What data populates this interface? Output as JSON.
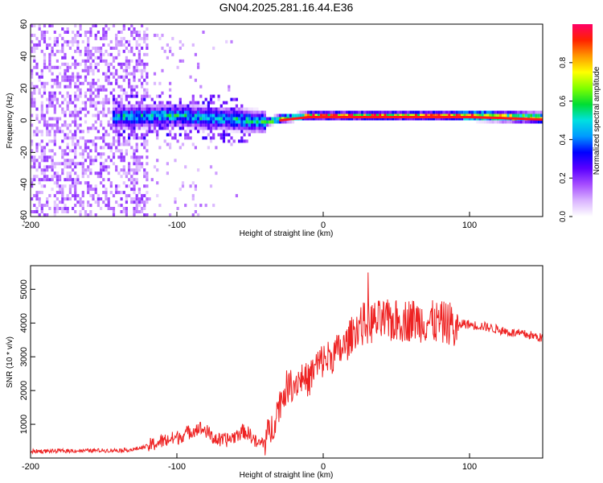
{
  "chart_data": [
    {
      "type": "heatmap",
      "title": "GN04.2025.281.16.44.E36",
      "xlabel": "Height of straight line (km)",
      "ylabel": "Frequency (Hz)",
      "xlim": [
        -200,
        150
      ],
      "ylim": [
        -60,
        60
      ],
      "xticks": [
        -200,
        -100,
        0,
        100
      ],
      "yticks": [
        -60,
        -40,
        -20,
        0,
        20,
        40,
        60
      ],
      "colorbar": {
        "label": "Normalized spectral amplitude",
        "range": [
          0,
          1
        ],
        "ticks": [
          "0.0",
          "0.2",
          "0.4",
          "0.6",
          "0.8"
        ],
        "colors": [
          "#ffffff",
          "#d9b3ff",
          "#a64dff",
          "#5a00ff",
          "#0000ff",
          "#0099ff",
          "#00e0e0",
          "#00dd33",
          "#80ff00",
          "#ffff00",
          "#ff9900",
          "#ff2200",
          "#ff0066"
        ]
      },
      "ridge": {
        "x": [
          -140,
          -120,
          -100,
          -80,
          -60,
          -50,
          -40,
          -30,
          -20,
          -10,
          0,
          20,
          40,
          60,
          80,
          90,
          100,
          120,
          150
        ],
        "y": [
          1,
          1.5,
          2,
          0.5,
          -0.5,
          -1.5,
          -2,
          0,
          1,
          2,
          2,
          2,
          2,
          2,
          2,
          2,
          2,
          1.5,
          0.5
        ]
      }
    },
    {
      "type": "line",
      "xlabel": "Height of straight line (km)",
      "ylabel": "SNR (10 * v/v)",
      "xlim": [
        -200,
        150
      ],
      "ylim": [
        0,
        5700
      ],
      "xticks": [
        -200,
        -100,
        0,
        100
      ],
      "yticks": [
        1000,
        2000,
        3000,
        4000,
        5000
      ],
      "series": [
        {
          "name": "SNR",
          "color": "#ee2222",
          "x": [
            -200,
            -180,
            -160,
            -140,
            -130,
            -120,
            -110,
            -100,
            -95,
            -90,
            -85,
            -80,
            -75,
            -70,
            -65,
            -60,
            -55,
            -50,
            -45,
            -40,
            -35,
            -30,
            -25,
            -20,
            -15,
            -10,
            -5,
            0,
            5,
            10,
            15,
            20,
            25,
            30,
            40,
            50,
            60,
            70,
            80,
            88,
            90,
            95,
            100,
            110,
            120,
            130,
            140,
            150
          ],
          "y": [
            200,
            210,
            220,
            230,
            250,
            350,
            500,
            600,
            700,
            800,
            900,
            800,
            600,
            500,
            550,
            650,
            800,
            700,
            400,
            500,
            900,
            1600,
            2100,
            2200,
            2400,
            2300,
            2700,
            2900,
            3000,
            3150,
            3300,
            3700,
            3950,
            4000,
            4050,
            4050,
            4100,
            4050,
            4000,
            4000,
            3700,
            4000,
            3950,
            3900,
            3800,
            3700,
            3650,
            3550
          ]
        }
      ]
    }
  ]
}
